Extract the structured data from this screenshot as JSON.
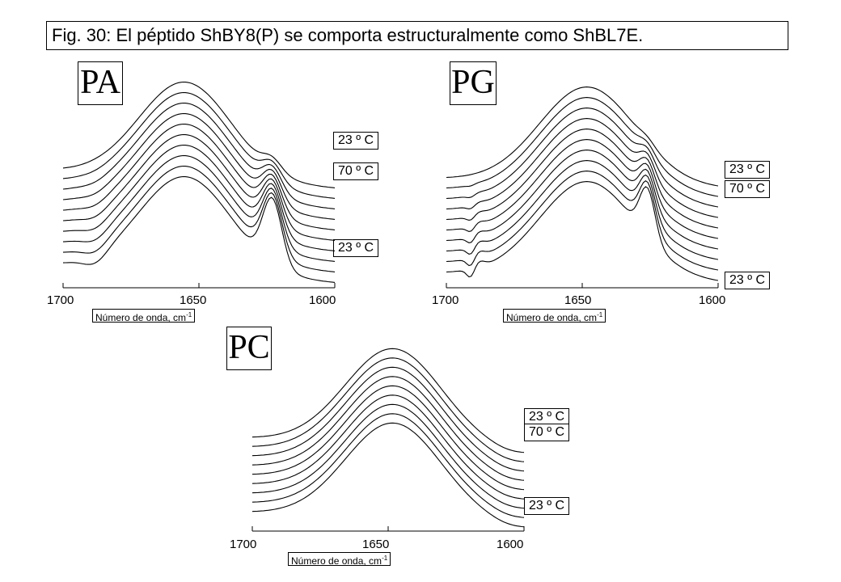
{
  "figure": {
    "title": "Fig. 30: El péptido ShBY8(P) se comporta estructuralmente como ShBL7E.",
    "line_color": "#000000",
    "background": "#ffffff"
  },
  "chart_data": [
    {
      "type": "line",
      "panel_label": "PA",
      "xlabel": "Número de onda, cm",
      "xlabel_sup": "-1",
      "xlim": [
        1700,
        1600
      ],
      "xaxis_reversed": true,
      "xticks": [
        "1700",
        "1650",
        "1600"
      ],
      "grid": false,
      "temperature_labels": [
        "23 º C",
        "70 º C",
        "23 º C"
      ],
      "series_count": 10
    },
    {
      "type": "line",
      "panel_label": "PG",
      "xlabel": "Número de onda, cm",
      "xlabel_sup": "-1",
      "xlim": [
        1700,
        1600
      ],
      "xaxis_reversed": true,
      "xticks": [
        "1700",
        "1650",
        "1600"
      ],
      "grid": false,
      "temperature_labels": [
        "23 º C",
        "70 º C",
        "23 º C"
      ],
      "series_count": 10
    },
    {
      "type": "line",
      "panel_label": "PC",
      "xlabel": "Número de onda, cm",
      "xlabel_sup": "-1",
      "xlim": [
        1700,
        1600
      ],
      "xaxis_reversed": true,
      "xticks": [
        "1700",
        "1650",
        "1600"
      ],
      "grid": false,
      "temperature_labels": [
        "23 º C",
        "70 º C",
        "23 º C"
      ],
      "series_count": 9
    }
  ]
}
